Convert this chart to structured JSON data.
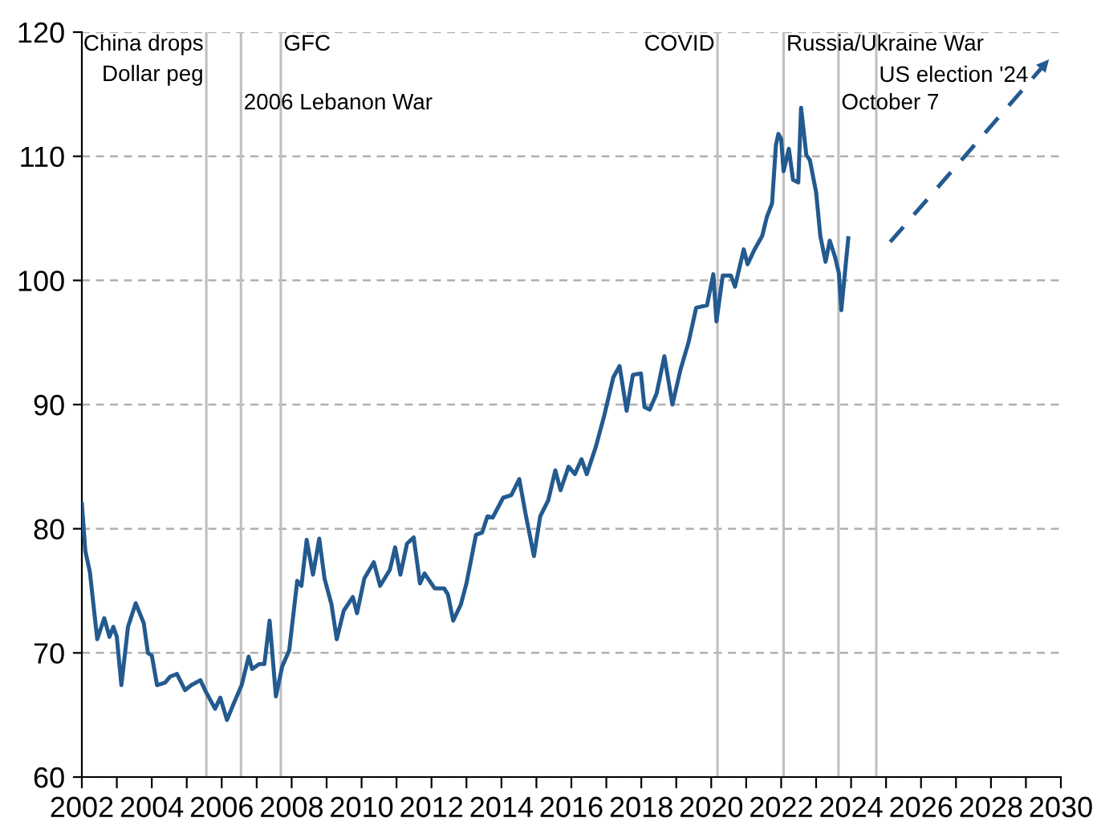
{
  "chart_data": {
    "type": "line",
    "series": [
      {
        "color": "#235a8f",
        "line_style": "solid",
        "x": [
          2002.0,
          2002.1,
          2002.23,
          2002.44,
          2002.64,
          2002.79,
          2002.9,
          2003.0,
          2003.13,
          2003.32,
          2003.54,
          2003.77,
          2003.89,
          2004.0,
          2004.15,
          2004.38,
          2004.53,
          2004.72,
          2004.95,
          2005.13,
          2005.39,
          2005.56,
          2005.81,
          2005.96,
          2006.15,
          2006.34,
          2006.57,
          2006.77,
          2006.87,
          2007.07,
          2007.22,
          2007.37,
          2007.55,
          2007.73,
          2007.93,
          2008.16,
          2008.28,
          2008.43,
          2008.61,
          2008.79,
          2008.94,
          2009.14,
          2009.29,
          2009.49,
          2009.75,
          2009.87,
          2010.08,
          2010.35,
          2010.53,
          2010.81,
          2010.96,
          2011.11,
          2011.3,
          2011.49,
          2011.67,
          2011.8,
          2012.09,
          2012.36,
          2012.47,
          2012.62,
          2012.84,
          2013.0,
          2013.27,
          2013.45,
          2013.6,
          2013.75,
          2014.05,
          2014.28,
          2014.51,
          2014.69,
          2014.93,
          2015.11,
          2015.34,
          2015.54,
          2015.69,
          2015.92,
          2016.1,
          2016.29,
          2016.44,
          2016.7,
          2016.93,
          2017.2,
          2017.38,
          2017.58,
          2017.76,
          2017.99,
          2018.09,
          2018.24,
          2018.44,
          2018.66,
          2018.89,
          2019.12,
          2019.35,
          2019.57,
          2019.88,
          2020.06,
          2020.15,
          2020.33,
          2020.56,
          2020.68,
          2020.93,
          2021.04,
          2021.24,
          2021.46,
          2021.59,
          2021.74,
          2021.85,
          2021.92,
          2022.0,
          2022.07,
          2022.22,
          2022.34,
          2022.49,
          2022.57,
          2022.72,
          2022.82,
          2023.0,
          2023.12,
          2023.27,
          2023.39,
          2023.54,
          2023.65,
          2023.72,
          2023.92
        ],
        "values": [
          82.0,
          78.2,
          76.5,
          71.1,
          72.8,
          71.3,
          72.1,
          71.3,
          67.4,
          72.1,
          74.0,
          72.4,
          70.0,
          69.8,
          67.4,
          67.6,
          68.1,
          68.3,
          67.0,
          67.4,
          67.8,
          66.8,
          65.5,
          66.4,
          64.6,
          65.9,
          67.4,
          69.7,
          68.7,
          69.1,
          69.1,
          72.6,
          66.5,
          68.9,
          70.2,
          75.8,
          75.4,
          79.1,
          76.3,
          79.2,
          76.0,
          73.9,
          71.1,
          73.4,
          74.5,
          73.2,
          76.0,
          77.3,
          75.4,
          76.7,
          78.5,
          76.3,
          78.8,
          79.3,
          75.6,
          76.4,
          75.2,
          75.2,
          74.7,
          72.6,
          73.9,
          75.6,
          79.5,
          79.7,
          81.0,
          80.9,
          82.5,
          82.7,
          84.0,
          81.2,
          77.8,
          81.0,
          82.3,
          84.7,
          83.1,
          85.0,
          84.4,
          85.6,
          84.4,
          86.6,
          89.0,
          92.2,
          93.1,
          89.5,
          92.4,
          92.5,
          89.8,
          89.6,
          90.9,
          93.9,
          90.0,
          92.8,
          95.0,
          97.8,
          98.0,
          100.5,
          96.7,
          100.4,
          100.4,
          99.5,
          102.5,
          101.3,
          102.5,
          103.6,
          105.1,
          106.2,
          110.9,
          111.8,
          111.4,
          108.8,
          110.6,
          108.1,
          107.9,
          113.9,
          110.1,
          109.7,
          107.1,
          103.6,
          101.5,
          103.2,
          101.9,
          100.6,
          97.6,
          103.4
        ]
      },
      {
        "type": "line",
        "color": "#235a8f",
        "line_style": "dashed",
        "x": [
          2025.12,
          2029.66
        ],
        "values": [
          103.1,
          117.8
        ]
      }
    ],
    "xlim": [
      2002,
      2030
    ],
    "xticks": [
      2002,
      {
        "value": 2003,
        "label": null
      },
      2004,
      {
        "value": 2005,
        "label": null
      },
      2006,
      {
        "value": 2007,
        "label": null
      },
      2008,
      {
        "value": 2009,
        "label": null
      },
      2010,
      {
        "value": 2011,
        "label": null
      },
      2012,
      {
        "value": 2013,
        "label": null
      },
      2014,
      {
        "value": 2015,
        "label": null
      },
      2016,
      {
        "value": 2017,
        "label": null
      },
      2018,
      {
        "value": 2019,
        "label": null
      },
      2020,
      {
        "value": 2021,
        "label": null
      },
      2022,
      {
        "value": 2023,
        "label": null
      },
      2024,
      {
        "value": 2025,
        "label": null
      },
      2026,
      {
        "value": 2027,
        "label": null
      },
      2028,
      {
        "value": 2029,
        "label": null
      },
      2030
    ],
    "ylim": [
      60,
      120
    ],
    "yticks": [
      60,
      70,
      80,
      90,
      100,
      110,
      120
    ],
    "grid": "y",
    "ref_lines": [
      {
        "axis": "x",
        "value": 2005.56,
        "label": "China drops\nDollar peg",
        "color": "#bfbfbf"
      },
      {
        "axis": "x",
        "value": 2006.55,
        "label": "2006 Lebanon War",
        "color": "#bfbfbf"
      },
      {
        "axis": "x",
        "value": 2007.69,
        "label": "GFC",
        "color": "#bfbfbf"
      },
      {
        "axis": "x",
        "value": 2020.18,
        "label": "COVID",
        "color": "#bfbfbf"
      },
      {
        "axis": "x",
        "value": 2022.07,
        "label": "Russia/Ukraine War",
        "color": "#bfbfbf"
      },
      {
        "axis": "x",
        "value": 2023.64,
        "label": "October 7",
        "color": "#bfbfbf"
      },
      {
        "axis": "x",
        "value": 2024.72,
        "label": "US election '24",
        "color": "#bfbfbf"
      }
    ]
  }
}
